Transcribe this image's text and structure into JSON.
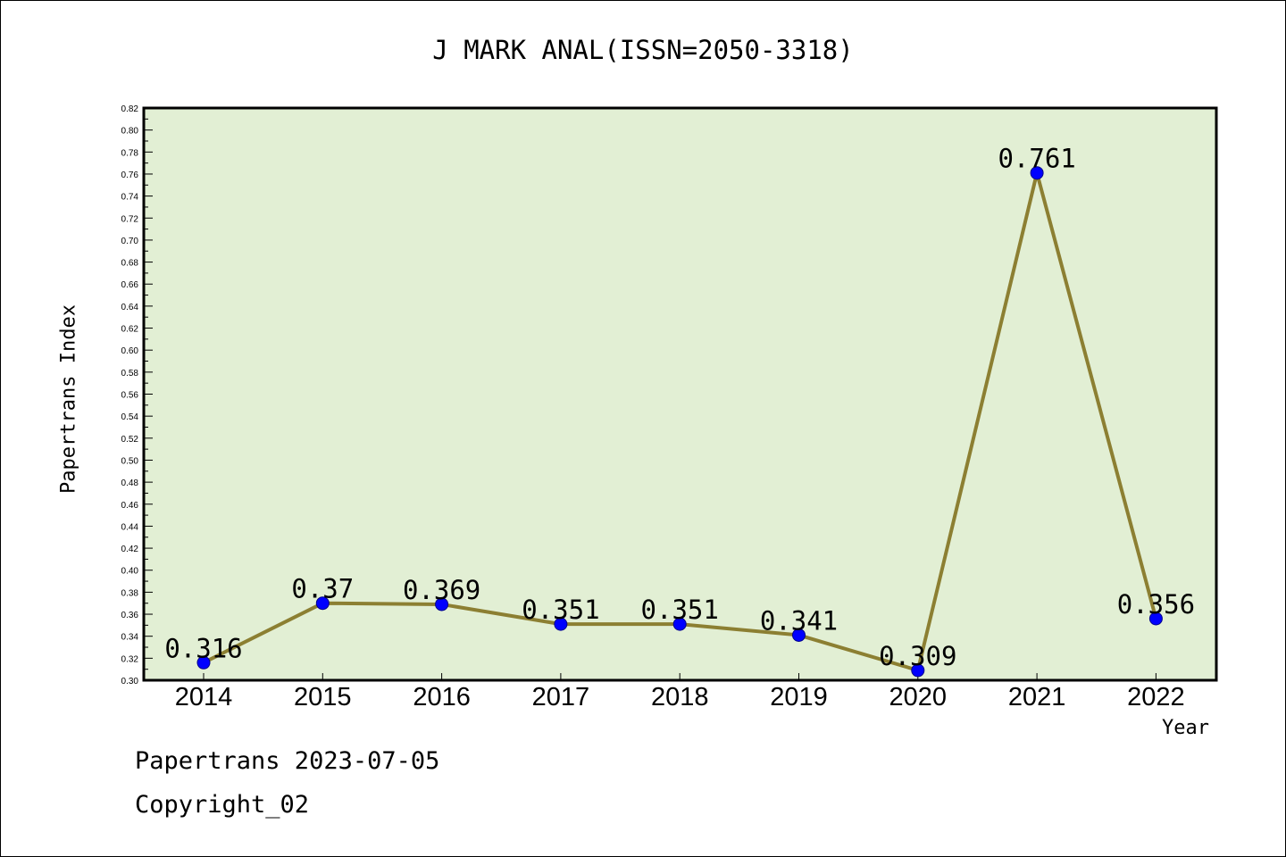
{
  "chart_data": {
    "type": "line",
    "title": "J MARK ANAL(ISSN=2050-3318)",
    "xlabel": "Year",
    "ylabel": "Papertrans Index",
    "categories": [
      "2014",
      "2015",
      "2016",
      "2017",
      "2018",
      "2019",
      "2020",
      "2021",
      "2022"
    ],
    "series": [
      {
        "values": [
          0.316,
          0.37,
          0.369,
          0.351,
          0.351,
          0.341,
          0.309,
          0.761,
          0.356
        ],
        "data_labels": [
          "0.316",
          "0.37",
          "0.369",
          "0.351",
          "0.351",
          "0.341",
          "0.309",
          "0.761",
          "0.356"
        ]
      }
    ],
    "ylim": [
      0.3,
      0.82
    ],
    "ytick_labels": [
      "0.30",
      "0.32",
      "0.34",
      "0.36",
      "0.38",
      "0.40",
      "0.42",
      "0.44",
      "0.46",
      "0.48",
      "0.50",
      "0.52",
      "0.54",
      "0.56",
      "0.58",
      "0.60",
      "0.62",
      "0.64",
      "0.66",
      "0.68",
      "0.70",
      "0.72",
      "0.74",
      "0.76",
      "0.78",
      "0.80",
      "0.82"
    ],
    "grid": false,
    "legend": "none",
    "colors": {
      "plot_background": "#e2efd4",
      "line": "#8c7f32",
      "marker": "#0000ff",
      "marker_edge": "#00008b"
    }
  },
  "footer": {
    "date_line": "Papertrans 2023-07-05",
    "copyright": "Copyright_02"
  }
}
